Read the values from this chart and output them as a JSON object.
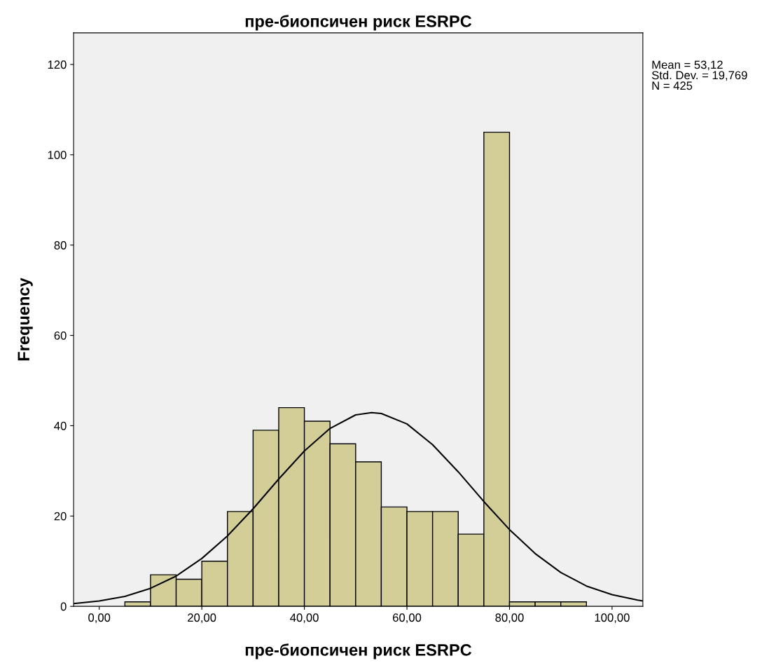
{
  "chart_data": {
    "type": "histogram",
    "title": "пре-биопсичен риск ESRPC",
    "xlabel": "пре-биопсичен риск ESRPC",
    "ylabel": "Frequency",
    "bins": [
      5,
      10,
      15,
      20,
      25,
      30,
      35,
      40,
      45,
      50,
      55,
      60,
      65,
      70,
      75,
      80,
      85,
      90,
      95
    ],
    "values": [
      1,
      7,
      6,
      10,
      21,
      39,
      44,
      41,
      36,
      32,
      22,
      21,
      21,
      16,
      105,
      1,
      1,
      1
    ],
    "color": "#d3ce97",
    "series": [
      {
        "type": "line",
        "color": "#000000",
        "x": [
          -5,
          0,
          5,
          10,
          15,
          20,
          25,
          30,
          35,
          40,
          45,
          50,
          53.1,
          55,
          60,
          65,
          70,
          75,
          80,
          85,
          90,
          95,
          100,
          105,
          106
        ],
        "values": [
          0.6,
          1.2,
          2.2,
          4.0,
          6.7,
          10.6,
          15.6,
          21.6,
          28.2,
          34.4,
          39.4,
          42.4,
          42.9,
          42.7,
          40.4,
          35.8,
          29.8,
          23.2,
          17.0,
          11.7,
          7.5,
          4.5,
          2.6,
          1.4,
          1.2
        ]
      }
    ],
    "xlim": [
      -5,
      106
    ],
    "ylim": [
      0,
      127
    ],
    "xticks": [
      {
        "value": 0,
        "label": "0,00"
      },
      {
        "value": 20,
        "label": "20,00"
      },
      {
        "value": 40,
        "label": "40,00"
      },
      {
        "value": 60,
        "label": "60,00"
      },
      {
        "value": 80,
        "label": "80,00"
      },
      {
        "value": 100,
        "label": "100,00"
      }
    ],
    "yticks": [
      0,
      20,
      40,
      60,
      80,
      100,
      120
    ],
    "grid": false,
    "annotations": [
      "Mean = 53,12\nStd. Dev. = 19,769\nN = 425"
    ]
  }
}
